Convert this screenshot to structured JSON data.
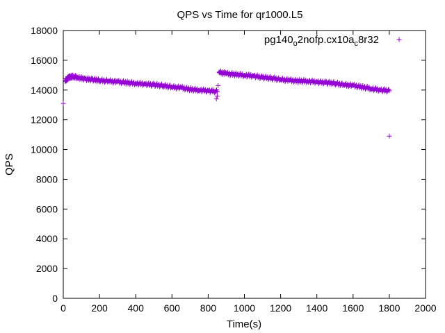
{
  "chart_data": {
    "type": "scatter",
    "title": "QPS vs Time for qr1000.L5",
    "xlabel": "Time(s)",
    "ylabel": "QPS",
    "xlim": [
      0,
      2000
    ],
    "ylim": [
      0,
      18000
    ],
    "xticks": [
      0,
      200,
      400,
      600,
      800,
      1000,
      1200,
      1400,
      1600,
      1800,
      2000
    ],
    "yticks": [
      0,
      2000,
      4000,
      6000,
      8000,
      10000,
      12000,
      14000,
      16000,
      18000
    ],
    "grid": false,
    "legend_position": "top-right",
    "marker": "plus",
    "series": [
      {
        "name_parts": [
          "pg140",
          "o",
          "2nofp.cx10a",
          "c",
          "8r32"
        ],
        "color": "#9400d3",
        "segments": [
          {
            "x_start": 10,
            "x_end": 850,
            "points": [
              [
                10,
                14600
              ],
              [
                30,
                14850
              ],
              [
                50,
                14900
              ],
              [
                80,
                14850
              ],
              [
                120,
                14750
              ],
              [
                160,
                14700
              ],
              [
                200,
                14650
              ],
              [
                250,
                14600
              ],
              [
                300,
                14550
              ],
              [
                350,
                14500
              ],
              [
                400,
                14450
              ],
              [
                450,
                14400
              ],
              [
                500,
                14350
              ],
              [
                550,
                14300
              ],
              [
                600,
                14200
              ],
              [
                650,
                14150
              ],
              [
                700,
                14050
              ],
              [
                750,
                14000
              ],
              [
                800,
                13950
              ],
              [
                850,
                13900
              ]
            ]
          },
          {
            "x_start": 860,
            "x_end": 1800,
            "points": [
              [
                860,
                15200
              ],
              [
                900,
                15100
              ],
              [
                950,
                15050
              ],
              [
                1000,
                15000
              ],
              [
                1050,
                14950
              ],
              [
                1100,
                14850
              ],
              [
                1150,
                14800
              ],
              [
                1200,
                14700
              ],
              [
                1250,
                14650
              ],
              [
                1300,
                14600
              ],
              [
                1350,
                14600
              ],
              [
                1400,
                14550
              ],
              [
                1450,
                14500
              ],
              [
                1500,
                14450
              ],
              [
                1550,
                14350
              ],
              [
                1600,
                14300
              ],
              [
                1650,
                14200
              ],
              [
                1700,
                14100
              ],
              [
                1750,
                14000
              ],
              [
                1800,
                13950
              ]
            ]
          }
        ],
        "outliers": [
          [
            0,
            13100
          ],
          [
            845,
            13400
          ],
          [
            850,
            13600
          ],
          [
            855,
            14300
          ],
          [
            1800,
            10900
          ]
        ]
      }
    ]
  }
}
